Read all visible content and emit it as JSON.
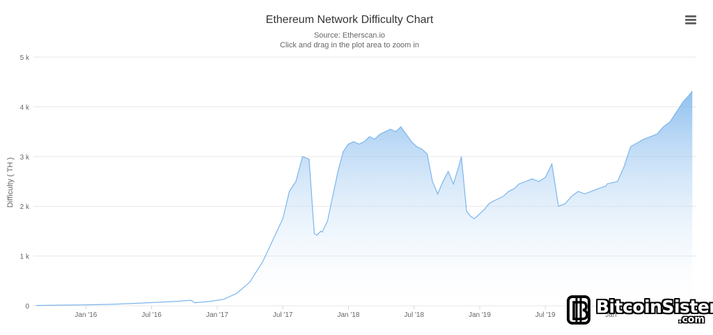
{
  "chart_data": {
    "type": "area",
    "title": "Ethereum Network Difficulty Chart",
    "subtitle_source": "Source: Etherscan.io",
    "subtitle_hint": "Click and drag in the plot area to zoom in",
    "ylabel": "Difficulty ( TH )",
    "xlabel": "",
    "ylim": [
      0,
      5000
    ],
    "y_ticks": [
      {
        "value": 0,
        "label": "0"
      },
      {
        "value": 1000,
        "label": "1 k"
      },
      {
        "value": 2000,
        "label": "2 k"
      },
      {
        "value": 3000,
        "label": "3 k"
      },
      {
        "value": 4000,
        "label": "4 k"
      },
      {
        "value": 5000,
        "label": "5 k"
      }
    ],
    "xlim": [
      2015.6,
      2020.65
    ],
    "x_ticks": [
      {
        "value": 2016.0,
        "label": "Jan '16"
      },
      {
        "value": 2016.5,
        "label": "Jul '16"
      },
      {
        "value": 2017.0,
        "label": "Jan '17"
      },
      {
        "value": 2017.5,
        "label": "Jul '17"
      },
      {
        "value": 2018.0,
        "label": "Jan '18"
      },
      {
        "value": 2018.5,
        "label": "Jul '18"
      },
      {
        "value": 2019.0,
        "label": "Jan '19"
      },
      {
        "value": 2019.5,
        "label": "Jul '19"
      },
      {
        "value": 2020.0,
        "label": "Jan"
      }
    ],
    "series": [
      {
        "name": "Difficulty",
        "x": [
          2015.62,
          2015.8,
          2016.0,
          2016.2,
          2016.4,
          2016.55,
          2016.7,
          2016.8,
          2016.83,
          2016.95,
          2017.05,
          2017.15,
          2017.25,
          2017.35,
          2017.42,
          2017.5,
          2017.55,
          2017.6,
          2017.65,
          2017.7,
          2017.74,
          2017.76,
          2017.79,
          2017.8,
          2017.84,
          2017.88,
          2017.92,
          2017.96,
          2018.0,
          2018.04,
          2018.08,
          2018.12,
          2018.16,
          2018.2,
          2018.24,
          2018.28,
          2018.32,
          2018.36,
          2018.4,
          2018.44,
          2018.48,
          2018.52,
          2018.56,
          2018.6,
          2018.64,
          2018.68,
          2018.72,
          2018.76,
          2018.8,
          2018.84,
          2018.86,
          2018.9,
          2018.93,
          2018.96,
          2019.0,
          2019.04,
          2019.07,
          2019.1,
          2019.14,
          2019.18,
          2019.22,
          2019.26,
          2019.3,
          2019.35,
          2019.4,
          2019.45,
          2019.5,
          2019.55,
          2019.6,
          2019.65,
          2019.7,
          2019.75,
          2019.8,
          2019.85,
          2019.9,
          2019.95,
          2019.96,
          2019.97,
          2020.05,
          2020.1,
          2020.15,
          2020.25,
          2020.35,
          2020.4,
          2020.45,
          2020.5,
          2020.55,
          2020.6,
          2020.62
        ],
        "values": [
          5,
          12,
          18,
          30,
          50,
          70,
          90,
          110,
          60,
          90,
          130,
          250,
          480,
          900,
          1300,
          1750,
          2300,
          2500,
          3000,
          2950,
          1450,
          1420,
          1500,
          1480,
          1700,
          2200,
          2700,
          3100,
          3250,
          3300,
          3250,
          3300,
          3400,
          3350,
          3450,
          3500,
          3550,
          3500,
          3600,
          3450,
          3300,
          3200,
          3150,
          3050,
          2500,
          2250,
          2500,
          2700,
          2450,
          2800,
          3000,
          1900,
          1800,
          1750,
          1850,
          1950,
          2050,
          2100,
          2150,
          2200,
          2300,
          2350,
          2450,
          2500,
          2550,
          2500,
          2580,
          2850,
          2000,
          2050,
          2200,
          2300,
          2250,
          2300,
          2350,
          2400,
          2400,
          2450,
          2500,
          2800,
          3200,
          3350,
          3450,
          3600,
          3700,
          3900,
          4100,
          4250,
          4320
        ]
      }
    ],
    "colors": {
      "line": "#7cb5ec",
      "fill_top": "#7cb5ec",
      "fill_bottom": "#ffffff",
      "grid": "#e6e6e6"
    }
  },
  "menu": {
    "icon": "hamburger-menu-icon"
  },
  "watermark": {
    "brand": "BitcoinSistemi",
    "domain": ".com"
  }
}
